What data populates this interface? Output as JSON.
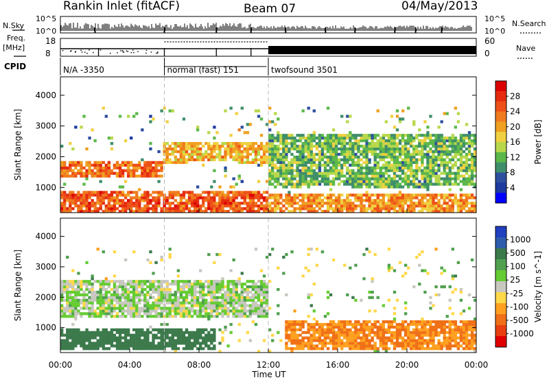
{
  "header": {
    "station": "Rankin Inlet (fitACF)",
    "beam": "Beam 07",
    "date": "04/May/2013"
  },
  "top_panels": {
    "nsky_label": "N.Sky",
    "nsky_ticks": [
      "10^5",
      "10^0"
    ],
    "nsearch_label": "N.Search",
    "nsearch_ticks": [
      "10^5",
      "10^0"
    ],
    "freq_label_1": "Freq.",
    "freq_label_2": "[MHz]",
    "freq_ticks": [
      "18",
      "8"
    ],
    "nave_label": "Nave",
    "nave_ticks": [
      "60",
      "0"
    ],
    "cpid_label": "CPID",
    "cpid_segments": [
      {
        "text": "N/A -3350",
        "start_hour": 0,
        "end_hour": 6
      },
      {
        "text": "normal (fast) 151",
        "start_hour": 6,
        "end_hour": 12
      },
      {
        "text": "twofsound 3501",
        "start_hour": 12,
        "end_hour": 24
      }
    ]
  },
  "colors": {
    "power": [
      "#0000ff",
      "#1e3aa0",
      "#2e4f9e",
      "#3f8f6a",
      "#5cb84a",
      "#b8d84a",
      "#f0d040",
      "#f0a020",
      "#f07a1e",
      "#ee5018",
      "#e52a10",
      "#dd0000"
    ],
    "velocity": [
      "#2040c0",
      "#2e5cac",
      "#3c7a4c",
      "#50a050",
      "#66cc33",
      "#c8c8c0",
      "#ffd84a",
      "#ffa020",
      "#f07018",
      "#e84010",
      "#e00000"
    ]
  },
  "chart_data": [
    {
      "type": "heatmap",
      "title": "Power",
      "xlabel": "",
      "ylabel": "Slant Range [km]",
      "xlim": [
        0,
        24
      ],
      "ylim": [
        180,
        4600
      ],
      "x_ticks": [
        "00:00",
        "04:00",
        "08:00",
        "12:00",
        "16:00",
        "20:00",
        "00:00"
      ],
      "y_ticks": [
        1000,
        2000,
        3000,
        4000
      ],
      "colorbar": {
        "label": "Power [dB]",
        "range": [
          0,
          32
        ],
        "ticks": [
          4,
          8,
          12,
          16,
          20,
          24,
          28
        ]
      },
      "echo_bands": [
        {
          "name": "near-range high power",
          "start_hour": 0.0,
          "end_hour": 12.0,
          "range_km": [
            200,
            900
          ],
          "value_db": 26
        },
        {
          "name": "near-range high power late",
          "start_hour": 12.0,
          "end_hour": 24.0,
          "range_km": [
            200,
            800
          ],
          "value_db": 22
        },
        {
          "name": "mid-range band",
          "start_hour": 0.0,
          "end_hour": 6.0,
          "range_km": [
            1300,
            1900
          ],
          "value_db": 24
        },
        {
          "name": "far-range band",
          "start_hour": 6.0,
          "end_hour": 12.0,
          "range_km": [
            1800,
            2500
          ],
          "value_db": 20
        },
        {
          "name": "scattered echoes",
          "start_hour": 12.0,
          "end_hour": 24.0,
          "range_km": [
            1000,
            2700
          ],
          "value_db": 12
        }
      ]
    },
    {
      "type": "heatmap",
      "title": "Velocity",
      "xlabel": "Time UT",
      "ylabel": "Slant Range [km]",
      "xlim": [
        0,
        24
      ],
      "ylim": [
        180,
        4600
      ],
      "x_ticks": [
        "00:00",
        "04:00",
        "08:00",
        "12:00",
        "16:00",
        "20:00",
        "00:00"
      ],
      "y_ticks": [
        1000,
        2000,
        3000,
        4000
      ],
      "colorbar": {
        "label": "Velocity [m s^-1]",
        "ticks": [
          "1000",
          "500",
          "100",
          "25",
          "-25",
          "-100",
          "-500",
          "-1000"
        ]
      },
      "echo_bands": [
        {
          "name": "ground scatter",
          "start_hour": 0.0,
          "end_hour": 12.0,
          "range_km": [
            1300,
            2600
          ],
          "value_ms": 0
        },
        {
          "name": "near-range toward",
          "start_hour": 0.0,
          "end_hour": 9.0,
          "range_km": [
            300,
            1000
          ],
          "value_ms": 150
        },
        {
          "name": "near-range away",
          "start_hour": 13.0,
          "end_hour": 24.0,
          "range_km": [
            250,
            1200
          ],
          "value_ms": -300
        }
      ]
    }
  ]
}
